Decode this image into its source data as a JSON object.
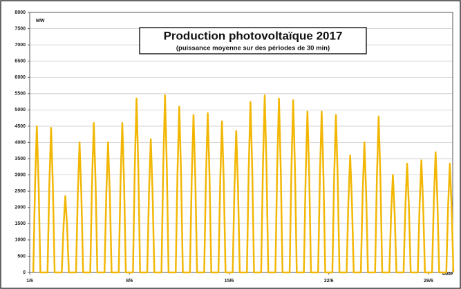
{
  "chart_data": {
    "type": "line",
    "title": "Production photovoltaïque 2017",
    "subtitle": "(puissance moyenne sur des périodes de 30 min)",
    "y_label": "MW",
    "x_label": "Date",
    "color": "#f2b705",
    "grid": true,
    "ylim": [
      0,
      8000
    ],
    "yticks": [
      0,
      500,
      1000,
      1500,
      2000,
      2500,
      3000,
      3500,
      4000,
      4500,
      5000,
      5500,
      6000,
      6500,
      7000,
      7500,
      8000
    ],
    "xlim": [
      0,
      29.7
    ],
    "xticks": [
      {
        "value": 0,
        "label": "1/6"
      },
      {
        "value": 7,
        "label": "8/6"
      },
      {
        "value": 14,
        "label": "15/6"
      },
      {
        "value": 21,
        "label": "22/6"
      },
      {
        "value": 28,
        "label": "29/6"
      }
    ],
    "x": [
      0.25,
      0.375,
      0.5,
      0.625,
      0.75,
      1.25,
      1.375,
      1.5,
      1.625,
      1.75,
      2.25,
      2.375,
      2.5,
      2.625,
      2.75,
      3.25,
      3.375,
      3.5,
      3.625,
      3.75,
      4.25,
      4.375,
      4.5,
      4.625,
      4.75,
      5.25,
      5.375,
      5.5,
      5.625,
      5.75,
      6.25,
      6.375,
      6.5,
      6.625,
      6.75,
      7.25,
      7.375,
      7.5,
      7.625,
      7.75,
      8.25,
      8.375,
      8.5,
      8.625,
      8.75,
      9.25,
      9.375,
      9.5,
      9.625,
      9.75,
      10.25,
      10.375,
      10.5,
      10.625,
      10.75,
      11.25,
      11.375,
      11.5,
      11.625,
      11.75,
      12.25,
      12.375,
      12.5,
      12.625,
      12.75,
      13.25,
      13.375,
      13.5,
      13.625,
      13.75,
      14.25,
      14.375,
      14.5,
      14.625,
      14.75,
      15.25,
      15.375,
      15.5,
      15.625,
      15.75,
      16.25,
      16.375,
      16.5,
      16.625,
      16.75,
      17.25,
      17.375,
      17.5,
      17.625,
      17.75,
      18.25,
      18.375,
      18.5,
      18.625,
      18.75,
      19.25,
      19.375,
      19.5,
      19.625,
      19.75,
      20.25,
      20.375,
      20.5,
      20.625,
      20.75,
      21.25,
      21.375,
      21.5,
      21.625,
      21.75,
      22.25,
      22.375,
      22.5,
      22.625,
      22.75,
      23.25,
      23.375,
      23.5,
      23.625,
      23.75,
      24.25,
      24.375,
      24.5,
      24.625,
      24.75,
      25.25,
      25.375,
      25.5,
      25.625,
      25.75,
      26.25,
      26.375,
      26.5,
      26.625,
      26.75,
      27.25,
      27.375,
      27.5,
      27.625,
      27.75,
      28.25,
      28.375,
      28.5,
      28.625,
      28.75,
      29.25,
      29.375,
      29.5,
      29.625,
      29.75
    ],
    "values": [
      0,
      2700,
      4500,
      2700,
      0,
      0,
      2670,
      4450,
      2670,
      0,
      0,
      1410,
      2350,
      1410,
      0,
      0,
      2400,
      4000,
      2400,
      0,
      0,
      2760,
      4600,
      2760,
      0,
      0,
      2400,
      4000,
      2400,
      0,
      0,
      2760,
      4600,
      2760,
      0,
      0,
      3210,
      5350,
      3210,
      0,
      0,
      2460,
      4100,
      2460,
      0,
      0,
      3270,
      5450,
      3270,
      0,
      0,
      3060,
      5100,
      3060,
      0,
      0,
      2910,
      4850,
      2910,
      0,
      0,
      2940,
      4900,
      2940,
      0,
      0,
      2790,
      4650,
      2790,
      0,
      0,
      2610,
      4350,
      2610,
      0,
      0,
      3150,
      5250,
      3150,
      0,
      0,
      3270,
      5450,
      3270,
      0,
      0,
      3210,
      5350,
      3210,
      0,
      0,
      3180,
      5300,
      3180,
      0,
      0,
      2970,
      4950,
      2970,
      0,
      0,
      2970,
      4950,
      2970,
      0,
      0,
      2910,
      4850,
      2910,
      0,
      0,
      2160,
      3600,
      2160,
      0,
      0,
      2400,
      4000,
      2400,
      0,
      0,
      2880,
      4800,
      2880,
      0,
      0,
      1800,
      3000,
      1800,
      0,
      0,
      2010,
      3350,
      2010,
      0,
      0,
      2070,
      3450,
      2070,
      0,
      0,
      2220,
      3700,
      2220,
      0,
      0,
      2010,
      3350,
      2010,
      0
    ]
  }
}
